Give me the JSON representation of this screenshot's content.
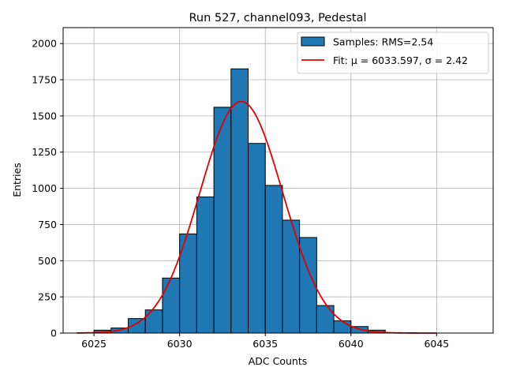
{
  "chart_data": {
    "type": "bar",
    "title": "Run 527, channel093, Pedestal",
    "xlabel": "ADC Counts",
    "ylabel": "Entries",
    "xlim": [
      6023.2,
      6048.3
    ],
    "ylim": [
      0,
      2110
    ],
    "x_ticks": [
      6025,
      6030,
      6035,
      6040,
      6045
    ],
    "y_ticks": [
      0,
      250,
      500,
      750,
      1000,
      1250,
      1500,
      1750,
      2000
    ],
    "grid": true,
    "legend_position": "top-right",
    "histogram": {
      "name": "Samples: RMS=2.54",
      "color": "#1f77b4",
      "bin_edges": [
        6025,
        6026,
        6027,
        6028,
        6029,
        6030,
        6031,
        6032,
        6033,
        6034,
        6035,
        6036,
        6037,
        6038,
        6039,
        6040,
        6041,
        6042
      ],
      "counts": [
        20,
        35,
        100,
        160,
        380,
        685,
        940,
        1560,
        1825,
        1310,
        1020,
        780,
        660,
        190,
        85,
        45,
        20
      ]
    },
    "fit": {
      "name": "Fit: μ = 6033.597, σ = 2.42",
      "color": "#e00000",
      "mu": 6033.597,
      "sigma": 2.42,
      "amplitude": 1600,
      "x_range": [
        6024,
        6045
      ]
    }
  }
}
